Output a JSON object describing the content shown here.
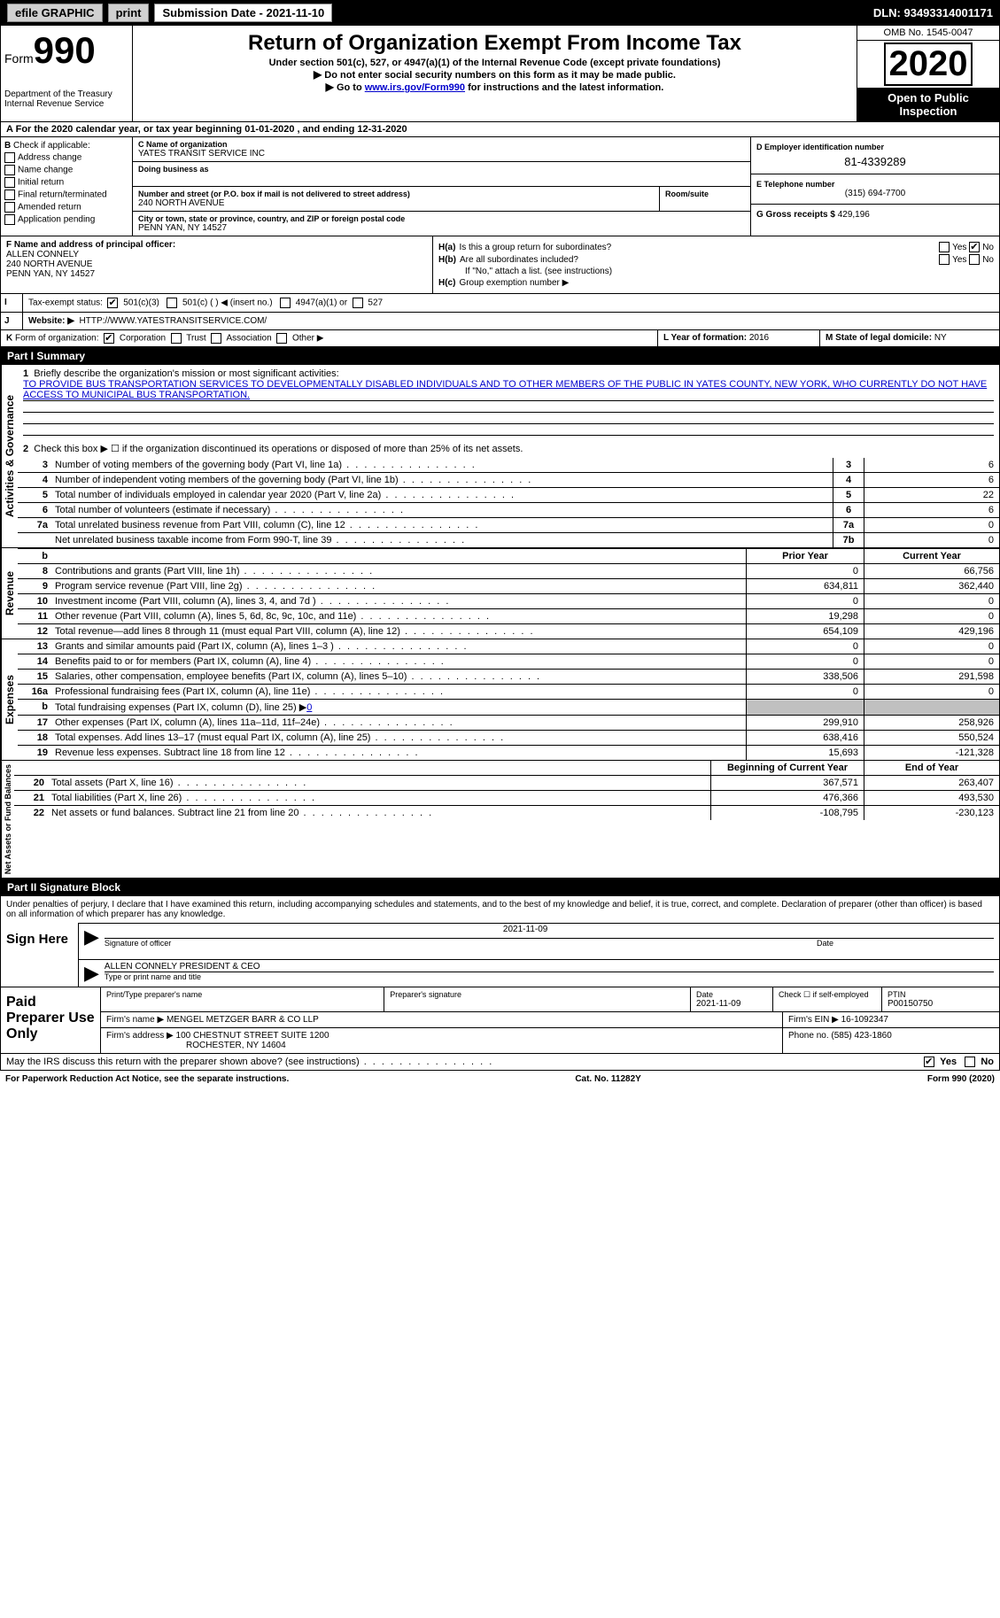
{
  "topbar": {
    "efile": "efile GRAPHIC",
    "print": "print",
    "sub_label": "Submission Date - 2021-11-10",
    "dln": "DLN: 93493314001171"
  },
  "header": {
    "form_label": "Form",
    "form_num": "990",
    "dept1": "Department of the Treasury",
    "dept2": "Internal Revenue Service",
    "title": "Return of Organization Exempt From Income Tax",
    "subtitle": "Under section 501(c), 527, or 4947(a)(1) of the Internal Revenue Code (except private foundations)",
    "note1": "Do not enter social security numbers on this form as it may be made public.",
    "note2_pre": "Go to ",
    "note2_link": "www.irs.gov/Form990",
    "note2_post": " for instructions and the latest information.",
    "omb": "OMB No. 1545-0047",
    "year": "2020",
    "open": "Open to Public Inspection"
  },
  "lineA": "For the 2020 calendar year, or tax year beginning 01-01-2020    , and ending 12-31-2020",
  "boxB": {
    "label": "Check if applicable:",
    "items": [
      "Address change",
      "Name change",
      "Initial return",
      "Final return/terminated",
      "Amended return",
      "Application pending"
    ]
  },
  "boxC": {
    "label": "C Name of organization",
    "name": "YATES TRANSIT SERVICE INC",
    "dba_label": "Doing business as",
    "street_label": "Number and street (or P.O. box if mail is not delivered to street address)",
    "room_label": "Room/suite",
    "street": "240 NORTH AVENUE",
    "city_label": "City or town, state or province, country, and ZIP or foreign postal code",
    "city": "PENN YAN, NY  14527"
  },
  "boxD": {
    "label": "D Employer identification number",
    "ein": "81-4339289"
  },
  "boxE": {
    "label": "E Telephone number",
    "phone": "(315) 694-7700"
  },
  "boxG": {
    "label": "G Gross receipts $",
    "val": "429,196"
  },
  "boxF": {
    "label": "F Name and address of principal officer:",
    "name": "ALLEN CONNELY",
    "addr1": "240 NORTH AVENUE",
    "addr2": "PENN YAN, NY  14527"
  },
  "boxH": {
    "a_label": "Is this a group return for subordinates?",
    "a_yes": "Yes",
    "a_no": "No",
    "b_label": "Are all subordinates included?",
    "b_note": "If \"No,\" attach a list. (see instructions)",
    "c_label": "Group exemption number ▶",
    "ha": "H(a)",
    "hb": "H(b)",
    "hc": "H(c)"
  },
  "boxI": {
    "label": "Tax-exempt status:",
    "o1": "501(c)(3)",
    "o2": "501(c) (   ) ◀ (insert no.)",
    "o3": "4947(a)(1) or",
    "o4": "527"
  },
  "boxJ": {
    "label": "Website: ▶",
    "url": "HTTP://WWW.YATESTRANSITSERVICE.COM/"
  },
  "boxK": {
    "label": "Form of organization:",
    "o1": "Corporation",
    "o2": "Trust",
    "o3": "Association",
    "o4": "Other ▶"
  },
  "boxL": {
    "label": "L Year of formation:",
    "val": "2016"
  },
  "boxM": {
    "label": "M State of legal domicile:",
    "val": "NY"
  },
  "part1": {
    "header": "Part I    Summary",
    "l1": "Briefly describe the organization's mission or most significant activities:",
    "mission": "TO PROVIDE BUS TRANSPORTATION SERVICES TO DEVELOPMENTALLY DISABLED INDIVIDUALS AND TO OTHER MEMBERS OF THE PUBLIC IN YATES COUNTY, NEW YORK, WHO CURRENTLY DO NOT HAVE ACCESS TO MUNICIPAL BUS TRANSPORTATION.",
    "l2": "Check this box ▶ ☐ if the organization discontinued its operations or disposed of more than 25% of its net assets.",
    "governance": [
      {
        "n": "3",
        "d": "Number of voting members of the governing body (Part VI, line 1a)",
        "b": "3",
        "v": "6"
      },
      {
        "n": "4",
        "d": "Number of independent voting members of the governing body (Part VI, line 1b)",
        "b": "4",
        "v": "6"
      },
      {
        "n": "5",
        "d": "Total number of individuals employed in calendar year 2020 (Part V, line 2a)",
        "b": "5",
        "v": "22"
      },
      {
        "n": "6",
        "d": "Total number of volunteers (estimate if necessary)",
        "b": "6",
        "v": "6"
      },
      {
        "n": "7a",
        "d": "Total unrelated business revenue from Part VIII, column (C), line 12",
        "b": "7a",
        "v": "0"
      },
      {
        "n": "",
        "d": "Net unrelated business taxable income from Form 990-T, line 39",
        "b": "7b",
        "v": "0"
      }
    ],
    "col_headers": {
      "b": "b",
      "prior": "Prior Year",
      "curr": "Current Year"
    },
    "revenue": [
      {
        "n": "8",
        "d": "Contributions and grants (Part VIII, line 1h)",
        "p": "0",
        "c": "66,756"
      },
      {
        "n": "9",
        "d": "Program service revenue (Part VIII, line 2g)",
        "p": "634,811",
        "c": "362,440"
      },
      {
        "n": "10",
        "d": "Investment income (Part VIII, column (A), lines 3, 4, and 7d )",
        "p": "0",
        "c": "0"
      },
      {
        "n": "11",
        "d": "Other revenue (Part VIII, column (A), lines 5, 6d, 8c, 9c, 10c, and 11e)",
        "p": "19,298",
        "c": "0"
      },
      {
        "n": "12",
        "d": "Total revenue—add lines 8 through 11 (must equal Part VIII, column (A), line 12)",
        "p": "654,109",
        "c": "429,196"
      }
    ],
    "expenses": [
      {
        "n": "13",
        "d": "Grants and similar amounts paid (Part IX, column (A), lines 1–3 )",
        "p": "0",
        "c": "0"
      },
      {
        "n": "14",
        "d": "Benefits paid to or for members (Part IX, column (A), line 4)",
        "p": "0",
        "c": "0"
      },
      {
        "n": "15",
        "d": "Salaries, other compensation, employee benefits (Part IX, column (A), lines 5–10)",
        "p": "338,506",
        "c": "291,598"
      },
      {
        "n": "16a",
        "d": "Professional fundraising fees (Part IX, column (A), line 11e)",
        "p": "0",
        "c": "0"
      },
      {
        "n": "b",
        "d": "Total fundraising expenses (Part IX, column (D), line 25) ▶",
        "link": "0",
        "shaded": true
      },
      {
        "n": "17",
        "d": "Other expenses (Part IX, column (A), lines 11a–11d, 11f–24e)",
        "p": "299,910",
        "c": "258,926"
      },
      {
        "n": "18",
        "d": "Total expenses. Add lines 13–17 (must equal Part IX, column (A), line 25)",
        "p": "638,416",
        "c": "550,524"
      },
      {
        "n": "19",
        "d": "Revenue less expenses. Subtract line 18 from line 12",
        "p": "15,693",
        "c": "-121,328"
      }
    ],
    "net_headers": {
      "prior": "Beginning of Current Year",
      "curr": "End of Year"
    },
    "net": [
      {
        "n": "20",
        "d": "Total assets (Part X, line 16)",
        "p": "367,571",
        "c": "263,407"
      },
      {
        "n": "21",
        "d": "Total liabilities (Part X, line 26)",
        "p": "476,366",
        "c": "493,530"
      },
      {
        "n": "22",
        "d": "Net assets or fund balances. Subtract line 21 from line 20",
        "p": "-108,795",
        "c": "-230,123"
      }
    ],
    "vert_gov": "Activities & Governance",
    "vert_rev": "Revenue",
    "vert_exp": "Expenses",
    "vert_net": "Net Assets or Fund Balances"
  },
  "part2": {
    "header": "Part II    Signature Block",
    "penalty": "Under penalties of perjury, I declare that I have examined this return, including accompanying schedules and statements, and to the best of my knowledge and belief, it is true, correct, and complete. Declaration of preparer (other than officer) is based on all information of which preparer has any knowledge.",
    "sign_here": "Sign Here",
    "sig_officer": "Signature of officer",
    "sig_date": "Date",
    "sig_date_val": "2021-11-09",
    "officer_name": "ALLEN CONNELY PRESIDENT & CEO",
    "type_name": "Type or print name and title",
    "paid": "Paid Preparer Use Only",
    "prep_name_label": "Print/Type preparer's name",
    "prep_sig_label": "Preparer's signature",
    "prep_date_label": "Date",
    "prep_date": "2021-11-09",
    "check_self": "Check ☐ if self-employed",
    "ptin_label": "PTIN",
    "ptin": "P00150750",
    "firm_name_label": "Firm's name    ▶",
    "firm_name": "MENGEL METZGER BARR & CO LLP",
    "firm_ein_label": "Firm's EIN ▶",
    "firm_ein": "16-1092347",
    "firm_addr_label": "Firm's address ▶",
    "firm_addr1": "100 CHESTNUT STREET SUITE 1200",
    "firm_addr2": "ROCHESTER, NY  14604",
    "firm_phone_label": "Phone no.",
    "firm_phone": "(585) 423-1860"
  },
  "discuss": {
    "q": "May the IRS discuss this return with the preparer shown above? (see instructions)",
    "yes": "Yes",
    "no": "No"
  },
  "footer": {
    "pra": "For Paperwork Reduction Act Notice, see the separate instructions.",
    "cat": "Cat. No. 11282Y",
    "form": "Form 990 (2020)"
  }
}
